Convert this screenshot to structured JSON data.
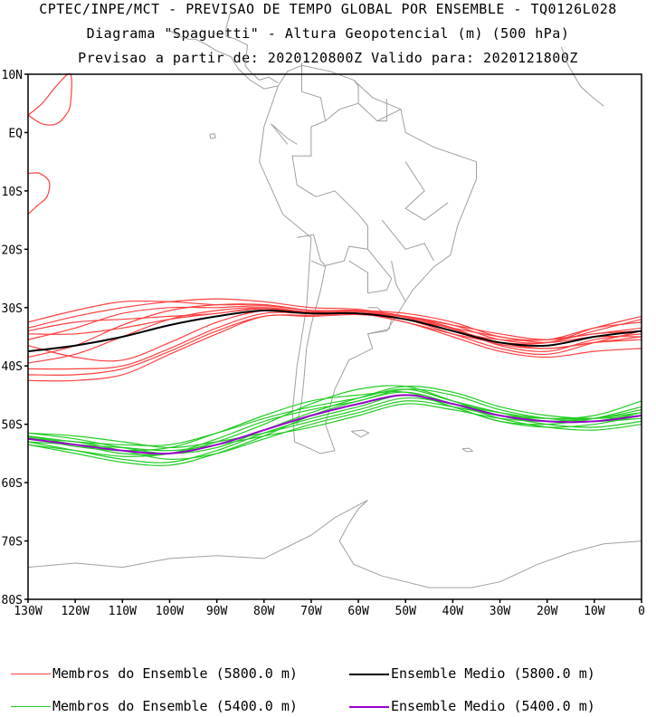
{
  "header": {
    "line1": "CPTEC/INPE/MCT - PREVISAO DE TEMPO GLOBAL POR ENSEMBLE - TQ0126L028",
    "line2": "Diagrama \"Spaguetti\" - Altura Geopotencial (m) (500 hPa)",
    "line3": "Previsao a partir de: 2020120800Z  Valido para: 2020121800Z"
  },
  "map": {
    "lat_labels": [
      "10N",
      "EQ",
      "10S",
      "20S",
      "30S",
      "40S",
      "50S",
      "60S",
      "70S",
      "80S"
    ],
    "lon_labels": [
      "130W",
      "120W",
      "110W",
      "100W",
      "90W",
      "80W",
      "70W",
      "60W",
      "50W",
      "40W",
      "30W",
      "20W",
      "10W",
      "0"
    ],
    "extent": {
      "lon_min": -130,
      "lon_max": 0,
      "lat_min": -80,
      "lat_max": 10
    },
    "colors": {
      "member_5800": "#ff4040",
      "mean_5800": "#000000",
      "member_5400": "#22cc22",
      "mean_5400": "#9900cc",
      "coast": "#a0a0a0"
    }
  },
  "chart_data": {
    "type": "line",
    "x_unit": "longitude",
    "y_unit": "latitude",
    "series": [
      {
        "name": "Ensemble Medio (5800.0 m)",
        "x": [
          -130,
          -120,
          -110,
          -100,
          -90,
          -80,
          -70,
          -60,
          -50,
          -40,
          -30,
          -20,
          -10,
          0
        ],
        "values": [
          -37.5,
          -36.5,
          -35,
          -33,
          -31.5,
          -30.5,
          -31,
          -31,
          -32,
          -34,
          -36,
          -36.5,
          -35,
          -34
        ]
      },
      {
        "name": "Ensemble Medio (5400.0 m)",
        "x": [
          -130,
          -120,
          -110,
          -100,
          -90,
          -80,
          -70,
          -60,
          -50,
          -40,
          -30,
          -20,
          -10,
          0
        ],
        "values": [
          -52.5,
          -53.5,
          -54.5,
          -55,
          -53.5,
          -51,
          -48.5,
          -46.5,
          -45,
          -46.5,
          -48.5,
          -49.5,
          -49.5,
          -48.5
        ]
      }
    ]
  },
  "legend": {
    "member_5800": "Membros do Ensemble (5800.0 m)",
    "mean_5800": "Ensemble Medio (5800.0 m)",
    "member_5400": "Membros do Ensemble (5400.0 m)",
    "mean_5400": "Ensemble Medio (5400.0 m)"
  }
}
